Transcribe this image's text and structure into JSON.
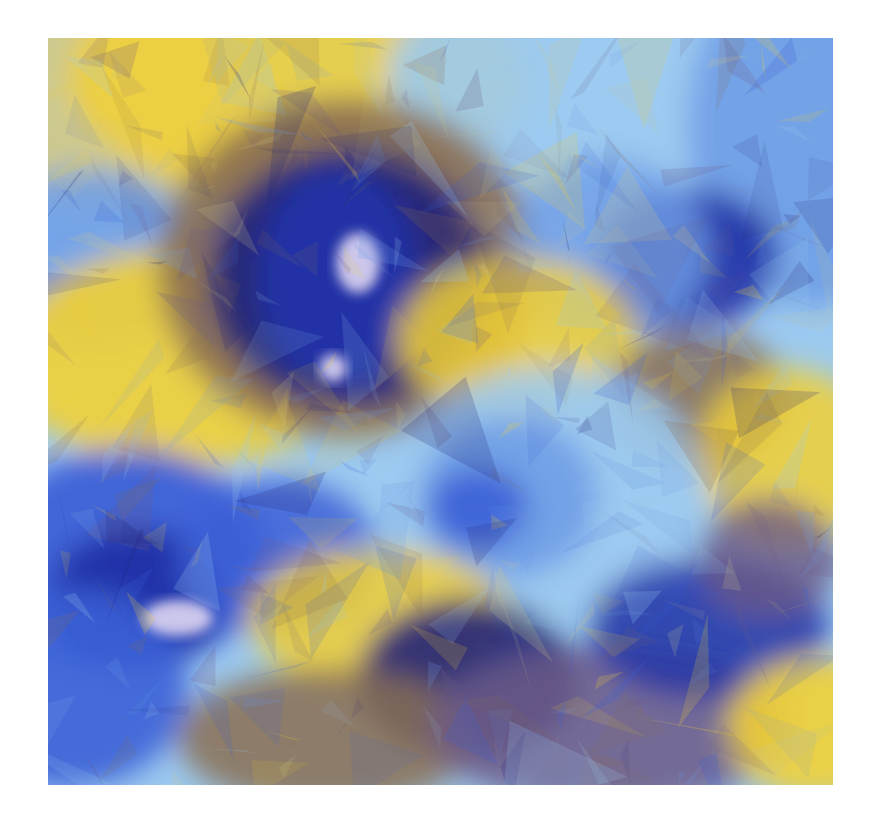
{
  "figure": {
    "kind": "triangulated color field visualization",
    "palette": {
      "pale_lavender": "#ded6f2",
      "light_blue": "#9ccaf0",
      "cornflower": "#6f9de6",
      "royal_blue": "#3c5fd6",
      "deep_blue": "#2132a6",
      "navy": "#232578",
      "dusky_brown": "#6d5a86",
      "olive_brown": "#8a6e52",
      "gold": "#f2d034",
      "khaki": "#cfc88a"
    }
  }
}
